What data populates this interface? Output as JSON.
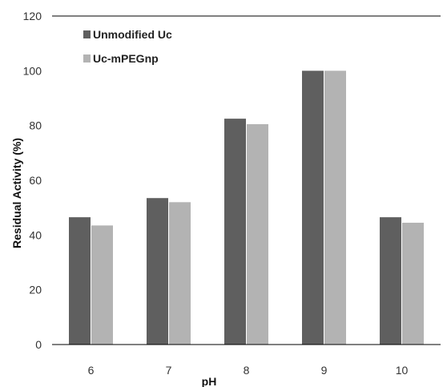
{
  "chart_data": {
    "type": "bar",
    "title": "",
    "xlabel": "pH",
    "ylabel": "Residual Activity (%)",
    "categories": [
      "6",
      "7",
      "8",
      "9",
      "10"
    ],
    "series": [
      {
        "name": "Unmodified Uc",
        "values": [
          46.5,
          53.5,
          82.5,
          100,
          46.5
        ],
        "color": "#5f5f5f"
      },
      {
        "name": "Uc-mPEGnp",
        "values": [
          43.5,
          52,
          80.5,
          100,
          44.5
        ],
        "color": "#b3b3b3"
      }
    ],
    "ylim": [
      0,
      120
    ],
    "yticks": [
      "0",
      "20",
      "40",
      "60",
      "80",
      "100",
      "120"
    ],
    "grid": false,
    "legend_position": "top-left"
  }
}
